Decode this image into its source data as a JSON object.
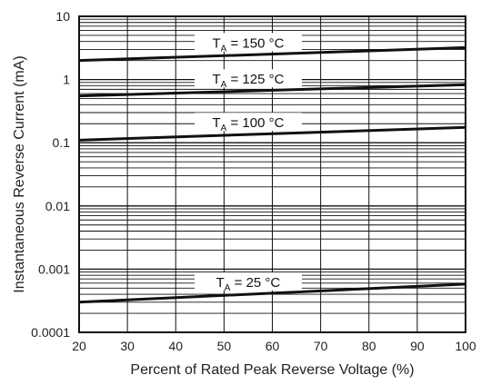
{
  "chart_data": {
    "type": "line",
    "title": "",
    "xlabel": "Percent of Rated Peak Reverse Voltage (%)",
    "ylabel": "Instantaneous Reverse Current (mA)",
    "x_scale": "linear",
    "y_scale": "log",
    "xlim": [
      20,
      100
    ],
    "ylim": [
      0.0001,
      10
    ],
    "grid": true,
    "x_ticks": [
      "20",
      "30",
      "40",
      "50",
      "60",
      "70",
      "80",
      "90",
      "100"
    ],
    "y_ticks": [
      "0.0001",
      "0.001",
      "0.01",
      "0.1",
      "1",
      "10"
    ],
    "series": [
      {
        "name": "T_A = 150 °C",
        "label_main": "T",
        "label_sub": "A",
        "label_rest": " = 150 °C",
        "x": [
          20,
          100
        ],
        "y": [
          2.0,
          3.2
        ]
      },
      {
        "name": "T_A = 125 °C",
        "label_main": "T",
        "label_sub": "A",
        "label_rest": " = 125 °C",
        "x": [
          20,
          100
        ],
        "y": [
          0.55,
          0.83
        ]
      },
      {
        "name": "T_A = 100 °C",
        "label_main": "T",
        "label_sub": "A",
        "label_rest": " = 100 °C",
        "x": [
          20,
          100
        ],
        "y": [
          0.11,
          0.175
        ]
      },
      {
        "name": "T_A = 25 °C",
        "label_main": "T",
        "label_sub": "A",
        "label_rest": " = 25 °C",
        "x": [
          20,
          100
        ],
        "y": [
          0.0003,
          0.00058
        ]
      }
    ]
  }
}
